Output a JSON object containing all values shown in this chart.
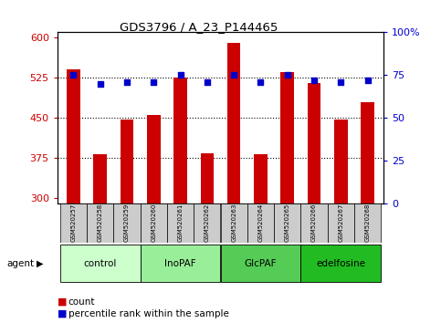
{
  "title": "GDS3796 / A_23_P144465",
  "samples": [
    "GSM520257",
    "GSM520258",
    "GSM520259",
    "GSM520260",
    "GSM520261",
    "GSM520262",
    "GSM520263",
    "GSM520264",
    "GSM520265",
    "GSM520266",
    "GSM520267",
    "GSM520268"
  ],
  "counts": [
    540,
    382,
    447,
    455,
    525,
    383,
    590,
    382,
    535,
    515,
    447,
    480
  ],
  "percentiles": [
    75,
    70,
    71,
    71,
    75,
    71,
    75,
    71,
    75,
    72,
    71,
    72
  ],
  "ylim_left": [
    290,
    610
  ],
  "ylim_right": [
    0,
    100
  ],
  "yticks_left": [
    300,
    375,
    450,
    525,
    600
  ],
  "yticks_right": [
    0,
    25,
    50,
    75,
    100
  ],
  "ytick_labels_right": [
    "0",
    "25",
    "50",
    "75",
    "100%"
  ],
  "hlines": [
    375,
    450,
    525
  ],
  "bar_color": "#cc0000",
  "dot_color": "#0000cc",
  "groups": [
    {
      "label": "control",
      "start": 0,
      "end": 3,
      "color": "#ccffcc"
    },
    {
      "label": "InoPAF",
      "start": 3,
      "end": 6,
      "color": "#99ee99"
    },
    {
      "label": "GlcPAF",
      "start": 6,
      "end": 9,
      "color": "#55cc55"
    },
    {
      "label": "edelfosine",
      "start": 9,
      "end": 12,
      "color": "#22bb22"
    }
  ],
  "agent_label": "agent",
  "legend_count_label": "count",
  "legend_pct_label": "percentile rank within the sample",
  "bar_width": 0.5,
  "left_tick_color": "#cc0000",
  "right_tick_color": "#0000cc",
  "plot_bg": "#ffffff",
  "sample_box_color": "#cccccc"
}
